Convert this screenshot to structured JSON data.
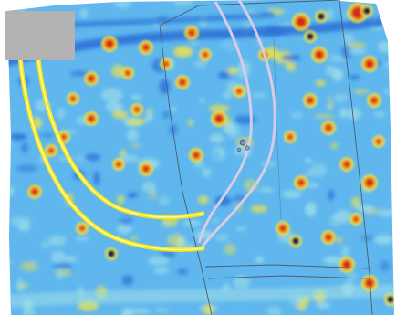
{
  "map": {
    "type": "geophysical-survey-heatmap",
    "palette": {
      "background": "#ffffff",
      "low": "#2a6fd6",
      "mid_low": "#5fb7ee",
      "mid": "#9bdce8",
      "mid_high": "#f1e44a",
      "high": "#f08a1c",
      "peak": "#d12a16",
      "dipole_negative": "#141b45",
      "overlay_line": "#f2e31b",
      "overlay_line_highlight": "#fffa9e",
      "overlay_path": "#d8cbe6",
      "grid_line": "#4a5e6e",
      "placeholder": "#b3b3b3"
    }
  }
}
